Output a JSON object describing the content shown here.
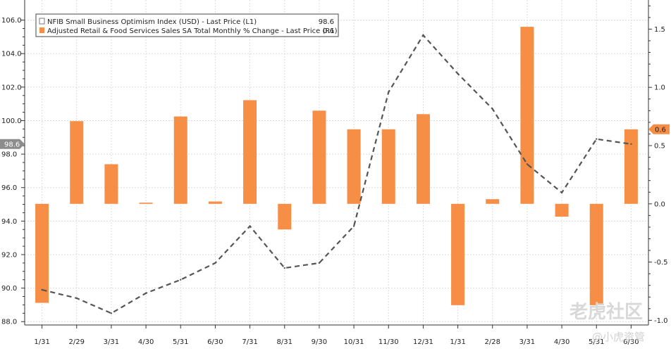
{
  "chart_data": {
    "type": "bar+line",
    "categories": [
      "1/31",
      "2/29",
      "3/31",
      "4/30",
      "5/31",
      "6/30",
      "7/31",
      "8/31",
      "9/30",
      "10/31",
      "11/30",
      "12/31",
      "1/31",
      "2/28",
      "3/31",
      "4/30",
      "5/31",
      "6/30"
    ],
    "series": [
      {
        "name": "NFIB Small Business Optimism Index (USD) - Last Price (L1)",
        "type": "line",
        "axis": "left",
        "last_value_label": "98.6",
        "color": "#555555",
        "values": [
          89.9,
          89.4,
          88.5,
          89.7,
          90.5,
          91.5,
          93.7,
          91.2,
          91.5,
          93.7,
          101.7,
          105.1,
          102.8,
          100.7,
          97.4,
          95.7,
          98.9,
          98.6
        ]
      },
      {
        "name": "Adjusted Retail & Food Services Sales SA Total Monthly % Change - Last Price (R1)",
        "type": "bar",
        "axis": "right",
        "last_value_label": "0.6",
        "color": "#f68e46",
        "values": [
          -0.85,
          0.71,
          0.34,
          0.01,
          0.75,
          0.02,
          0.89,
          -0.22,
          0.8,
          0.64,
          0.64,
          0.77,
          -0.87,
          0.04,
          1.52,
          -0.11,
          -0.87,
          0.64
        ]
      }
    ],
    "left_axis": {
      "ticks": [
        "88.0",
        "90.0",
        "92.0",
        "94.0",
        "96.0",
        "98.0",
        "100.0",
        "102.0",
        "104.0",
        "106.0"
      ],
      "ylim": [
        87.8,
        107.2
      ]
    },
    "right_axis": {
      "ticks": [
        "-1.0",
        "-0.5",
        "0.0",
        "0.5",
        "1.0",
        "1.5"
      ],
      "ylim": [
        -1.04,
        1.75
      ]
    },
    "legend": {
      "placement": "top-left",
      "entries": [
        {
          "label": "NFIB Small Business Optimism Index (USD) - Last Price (L1)",
          "value": "98.6"
        },
        {
          "label": "Adjusted Retail & Food Services Sales SA Total Monthly % Change - Last Price (R1)",
          "value": "0.6"
        }
      ]
    },
    "grid": true
  },
  "watermark": {
    "main": "老虎社区",
    "sub": "@小虎资管"
  }
}
